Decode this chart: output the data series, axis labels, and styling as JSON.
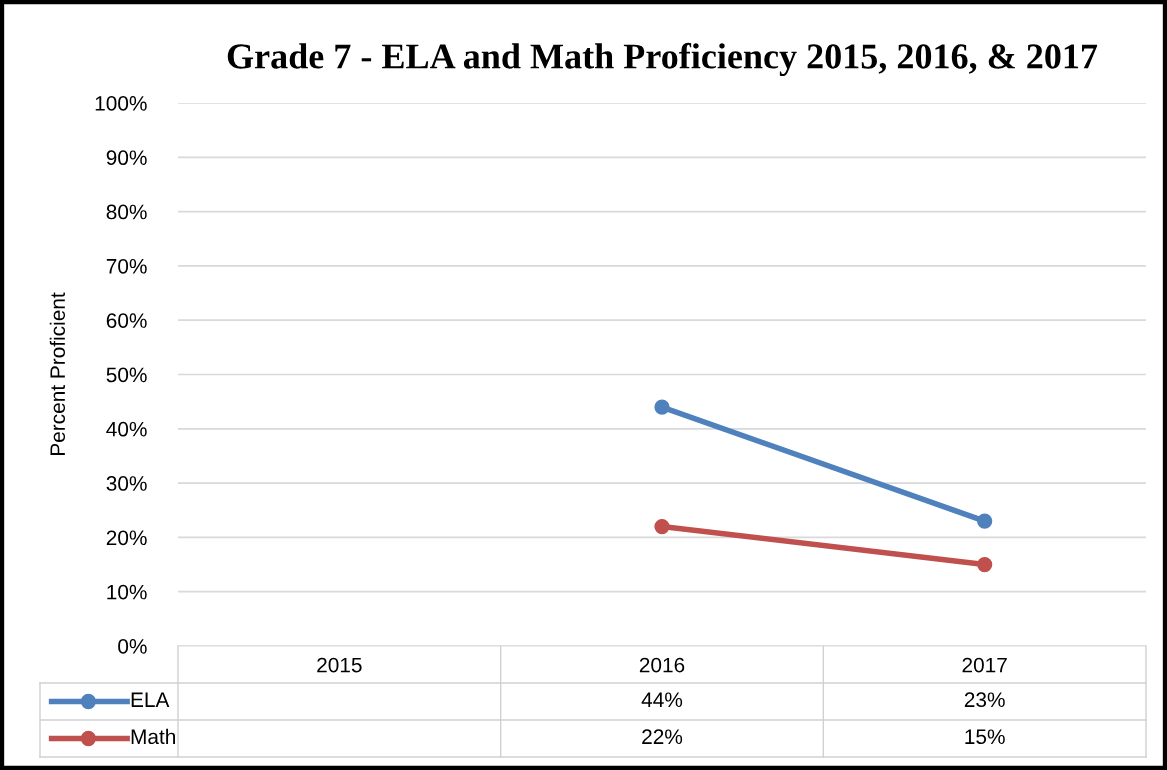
{
  "chart_data": {
    "type": "line",
    "title": "Grade 7 - ELA and Math Proficiency 2015, 2016, & 2017",
    "ylabel": "Percent Proficient",
    "categories": [
      "2015",
      "2016",
      "2017"
    ],
    "series": [
      {
        "name": "ELA",
        "color": "#4f81bd",
        "values": [
          null,
          44,
          23
        ],
        "value_labels": [
          null,
          "44%",
          "23%"
        ]
      },
      {
        "name": "Math",
        "color": "#c0504d",
        "values": [
          null,
          22,
          15
        ],
        "value_labels": [
          null,
          "22%",
          "15%"
        ]
      }
    ],
    "ylim": [
      0,
      100
    ],
    "yticks": [
      {
        "value": 0,
        "label": "0%"
      },
      {
        "value": 10,
        "label": "10%"
      },
      {
        "value": 20,
        "label": "20%"
      },
      {
        "value": 30,
        "label": "30%"
      },
      {
        "value": 40,
        "label": "40%"
      },
      {
        "value": 50,
        "label": "50%"
      },
      {
        "value": 60,
        "label": "60%"
      },
      {
        "value": 70,
        "label": "70%"
      },
      {
        "value": 80,
        "label": "80%"
      },
      {
        "value": 90,
        "label": "90%"
      },
      {
        "value": 100,
        "label": "100%"
      }
    ],
    "grid": "y",
    "legend": "bottom",
    "marker": "circle",
    "line_style": "solid"
  }
}
